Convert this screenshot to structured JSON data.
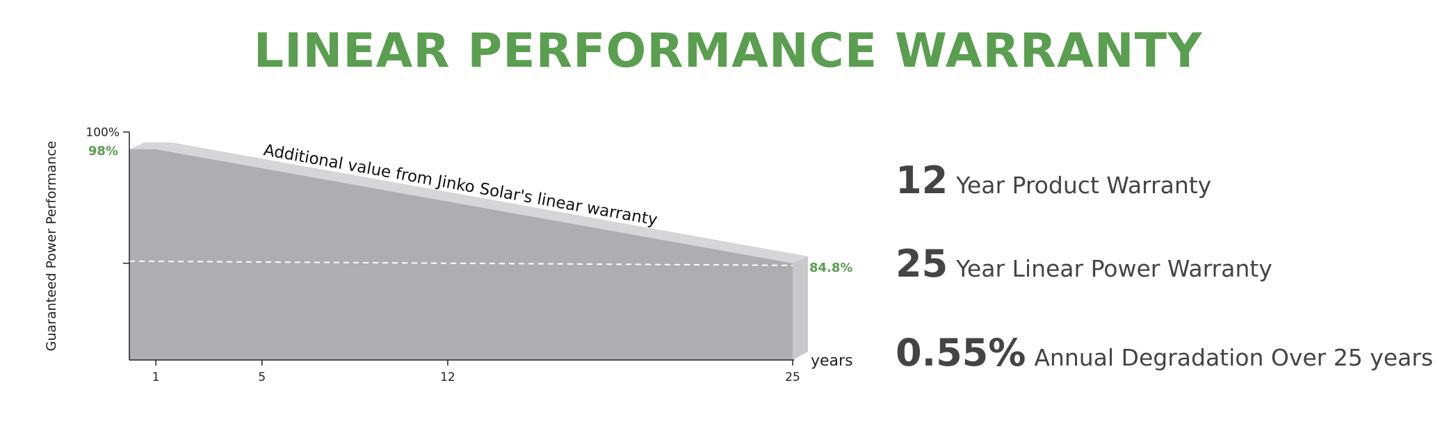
{
  "title": "LINEAR PERFORMANCE WARRANTY",
  "colors": {
    "title": "#5a9e4f",
    "green_label": "#5a9e4f",
    "area_fill": "#adadb2",
    "bevel_top": "#d6d6d8",
    "bevel_side": "#c9c9cc",
    "dashed_line": "#ffffff",
    "axis": "#222222",
    "feature_text": "#444444"
  },
  "chart_data": {
    "type": "area",
    "ylabel": "Guaranteed Power Performance",
    "xlabel": "years",
    "x_ticks": [
      1,
      5,
      12,
      25
    ],
    "y_tick_labels": [
      "100%"
    ],
    "series": [
      {
        "name": "linear warranty",
        "x": [
          0,
          1,
          25
        ],
        "y": [
          98,
          98,
          84.8
        ]
      }
    ],
    "reference_level": 84.8,
    "point_labels": [
      {
        "label": "98%",
        "x": 0,
        "y": 98
      },
      {
        "label": "84.8%",
        "x": 25,
        "y": 84.8
      }
    ],
    "annotation": "Additional value from Jinko Solar's linear warranty",
    "xlim": [
      0,
      25
    ],
    "ylim": [
      73.6,
      100
    ],
    "grid": false,
    "legend": "none"
  },
  "features": [
    {
      "number": "12",
      "text": "Year Product Warranty"
    },
    {
      "number": "25",
      "text": "Year Linear Power Warranty"
    },
    {
      "number": "0.55%",
      "text": "Annual Degradation Over 25 years"
    }
  ]
}
